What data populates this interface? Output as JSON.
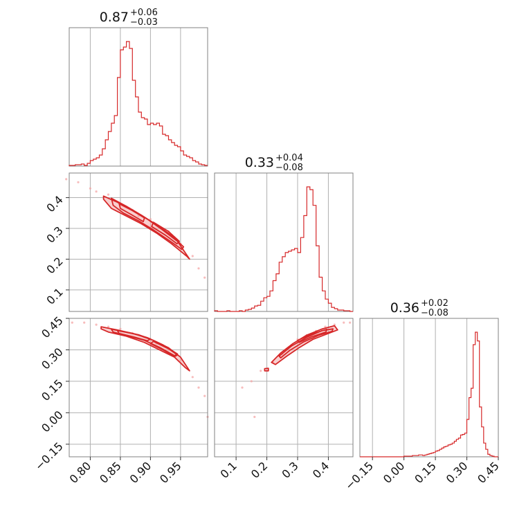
{
  "colors": {
    "main": "#d62728",
    "light": "#f4a6a6",
    "grid": "#b0b0b0",
    "frame": "#808080"
  },
  "chart_data": {
    "type": "corner",
    "grid": true,
    "params": [
      {
        "title": {
          "median": "0.87",
          "upper": "+0.06",
          "lower": "−0.03"
        },
        "range": [
          0.765,
          0.995
        ],
        "ticks": [
          0.8,
          0.85,
          0.9,
          0.95
        ],
        "tick_labels": [
          "0.80",
          "0.85",
          "0.90",
          "0.95"
        ],
        "hist_x": [
          0.765,
          0.77,
          0.775,
          0.78,
          0.785,
          0.79,
          0.795,
          0.8,
          0.805,
          0.81,
          0.815,
          0.82,
          0.825,
          0.83,
          0.835,
          0.84,
          0.845,
          0.85,
          0.855,
          0.86,
          0.865,
          0.87,
          0.875,
          0.88,
          0.885,
          0.89,
          0.895,
          0.9,
          0.905,
          0.91,
          0.915,
          0.92,
          0.925,
          0.93,
          0.935,
          0.94,
          0.945,
          0.95,
          0.955,
          0.96,
          0.965,
          0.97,
          0.975,
          0.98,
          0.985,
          0.99,
          0.995
        ],
        "hist_y": [
          1,
          1,
          2,
          2,
          3,
          1,
          4,
          8,
          10,
          12,
          16,
          25,
          38,
          50,
          62,
          73,
          128,
          168,
          172,
          180,
          170,
          124,
          100,
          78,
          70,
          68,
          60,
          62,
          60,
          62,
          58,
          46,
          44,
          38,
          34,
          30,
          28,
          22,
          16,
          14,
          12,
          8,
          6,
          3,
          2,
          1
        ]
      },
      {
        "title": {
          "median": "0.33",
          "upper": "+0.04",
          "lower": "−0.08"
        },
        "range": [
          0.03,
          0.48
        ],
        "ticks": [
          0.1,
          0.2,
          0.3,
          0.4
        ],
        "tick_labels": [
          "0.1",
          "0.2",
          "0.3",
          "0.4"
        ],
        "hist_x": [
          0.03,
          0.04,
          0.05,
          0.06,
          0.07,
          0.08,
          0.09,
          0.1,
          0.11,
          0.12,
          0.13,
          0.14,
          0.15,
          0.16,
          0.17,
          0.18,
          0.19,
          0.2,
          0.21,
          0.22,
          0.23,
          0.24,
          0.25,
          0.26,
          0.27,
          0.28,
          0.29,
          0.3,
          0.31,
          0.32,
          0.33,
          0.34,
          0.35,
          0.36,
          0.37,
          0.38,
          0.39,
          0.4,
          0.41,
          0.42,
          0.43,
          0.44,
          0.45,
          0.46,
          0.47,
          0.48
        ],
        "hist_y": [
          1,
          0,
          0,
          0,
          1,
          0,
          0,
          0,
          1,
          0,
          2,
          3,
          5,
          8,
          9,
          15,
          20,
          22,
          30,
          45,
          55,
          72,
          80,
          86,
          88,
          90,
          92,
          86,
          108,
          140,
          182,
          178,
          155,
          96,
          50,
          30,
          18,
          12,
          6,
          4,
          2,
          2,
          1,
          1,
          0
        ]
      },
      {
        "title": {
          "median": "0.36",
          "upper": "+0.02",
          "lower": "−0.08"
        },
        "range": [
          -0.21,
          0.45
        ],
        "ticks": [
          -0.15,
          0.0,
          0.15,
          0.3,
          0.45
        ],
        "tick_labels": [
          "−0.15",
          "0.00",
          "0.15",
          "0.30",
          "0.45"
        ],
        "hist_x": [
          -0.21,
          -0.2,
          -0.19,
          -0.18,
          -0.17,
          -0.16,
          -0.15,
          -0.14,
          -0.13,
          -0.12,
          -0.11,
          -0.1,
          -0.09,
          -0.08,
          -0.07,
          -0.06,
          -0.05,
          -0.04,
          -0.03,
          -0.02,
          -0.01,
          0.0,
          0.01,
          0.02,
          0.03,
          0.04,
          0.05,
          0.06,
          0.07,
          0.08,
          0.09,
          0.1,
          0.11,
          0.12,
          0.13,
          0.14,
          0.15,
          0.16,
          0.17,
          0.18,
          0.19,
          0.2,
          0.21,
          0.22,
          0.23,
          0.24,
          0.25,
          0.26,
          0.27,
          0.28,
          0.29,
          0.3,
          0.31,
          0.32,
          0.33,
          0.34,
          0.35,
          0.36,
          0.37,
          0.38,
          0.39,
          0.4,
          0.41,
          0.42,
          0.43,
          0.44,
          0.45
        ],
        "hist_y": [
          0,
          0,
          0,
          0,
          0,
          0,
          0,
          0,
          0,
          0,
          0,
          0,
          0,
          0,
          0,
          0,
          0,
          0,
          0,
          0,
          0,
          1,
          1,
          1,
          1,
          2,
          2,
          2,
          3,
          3,
          2,
          3,
          4,
          5,
          6,
          7,
          9,
          10,
          12,
          14,
          16,
          17,
          19,
          20,
          22,
          25,
          28,
          30,
          35,
          36,
          38,
          60,
          95,
          110,
          180,
          200,
          186,
          80,
          48,
          22,
          12,
          4,
          2,
          1,
          0,
          0
        ]
      }
    ],
    "pairs": [
      {
        "row": 1,
        "col": 0,
        "scatter": [
          [
            0.76,
            0.46
          ],
          [
            0.78,
            0.45
          ],
          [
            0.8,
            0.43
          ],
          [
            0.81,
            0.42
          ],
          [
            0.83,
            0.41
          ],
          [
            0.84,
            0.39
          ],
          [
            0.86,
            0.37
          ],
          [
            0.87,
            0.36
          ],
          [
            0.88,
            0.34
          ],
          [
            0.9,
            0.33
          ],
          [
            0.91,
            0.31
          ],
          [
            0.93,
            0.29
          ],
          [
            0.94,
            0.27
          ],
          [
            0.95,
            0.25
          ],
          [
            0.97,
            0.21
          ],
          [
            0.98,
            0.17
          ],
          [
            0.99,
            0.14
          ]
        ],
        "contours": [
          [
            [
              0.822,
              0.405
            ],
            [
              0.845,
              0.385
            ],
            [
              0.87,
              0.358
            ],
            [
              0.895,
              0.33
            ],
            [
              0.92,
              0.295
            ],
            [
              0.945,
              0.258
            ],
            [
              0.965,
              0.2
            ],
            [
              0.96,
              0.21
            ],
            [
              0.935,
              0.25
            ],
            [
              0.91,
              0.285
            ],
            [
              0.885,
              0.315
            ],
            [
              0.86,
              0.34
            ],
            [
              0.835,
              0.365
            ],
            [
              0.822,
              0.395
            ]
          ],
          [
            [
              0.835,
              0.398
            ],
            [
              0.86,
              0.372
            ],
            [
              0.885,
              0.343
            ],
            [
              0.91,
              0.312
            ],
            [
              0.935,
              0.277
            ],
            [
              0.955,
              0.24
            ],
            [
              0.952,
              0.232
            ],
            [
              0.93,
              0.262
            ],
            [
              0.905,
              0.295
            ],
            [
              0.88,
              0.325
            ],
            [
              0.855,
              0.35
            ],
            [
              0.838,
              0.375
            ]
          ],
          [
            [
              0.848,
              0.38
            ],
            [
              0.87,
              0.358
            ],
            [
              0.89,
              0.334
            ],
            [
              0.888,
              0.322
            ],
            [
              0.868,
              0.345
            ],
            [
              0.85,
              0.365
            ]
          ],
          [
            [
              0.905,
              0.32
            ],
            [
              0.93,
              0.29
            ],
            [
              0.948,
              0.258
            ],
            [
              0.944,
              0.25
            ],
            [
              0.925,
              0.278
            ],
            [
              0.902,
              0.306
            ]
          ]
        ]
      },
      {
        "row": 2,
        "col": 0,
        "scatter": [
          [
            0.77,
            0.43
          ],
          [
            0.79,
            0.43
          ],
          [
            0.81,
            0.42
          ],
          [
            0.83,
            0.41
          ],
          [
            0.85,
            0.4
          ],
          [
            0.87,
            0.38
          ],
          [
            0.89,
            0.36
          ],
          [
            0.91,
            0.33
          ],
          [
            0.93,
            0.3
          ],
          [
            0.95,
            0.25
          ],
          [
            0.97,
            0.17
          ],
          [
            0.98,
            0.12
          ],
          [
            0.99,
            0.08
          ],
          [
            0.995,
            -0.02
          ]
        ],
        "contours": [
          [
            [
              0.818,
              0.41
            ],
            [
              0.845,
              0.395
            ],
            [
              0.875,
              0.375
            ],
            [
              0.905,
              0.345
            ],
            [
              0.93,
              0.31
            ],
            [
              0.95,
              0.265
            ],
            [
              0.965,
              0.2
            ],
            [
              0.958,
              0.215
            ],
            [
              0.94,
              0.265
            ],
            [
              0.915,
              0.3
            ],
            [
              0.89,
              0.335
            ],
            [
              0.86,
              0.365
            ],
            [
              0.83,
              0.385
            ],
            [
              0.818,
              0.4
            ]
          ],
          [
            [
              0.835,
              0.398
            ],
            [
              0.865,
              0.382
            ],
            [
              0.895,
              0.358
            ],
            [
              0.92,
              0.325
            ],
            [
              0.945,
              0.28
            ],
            [
              0.94,
              0.272
            ],
            [
              0.915,
              0.312
            ],
            [
              0.89,
              0.345
            ],
            [
              0.86,
              0.368
            ],
            [
              0.838,
              0.385
            ]
          ],
          [
            [
              0.845,
              0.392
            ],
            [
              0.88,
              0.372
            ],
            [
              0.9,
              0.352
            ],
            [
              0.895,
              0.343
            ],
            [
              0.872,
              0.362
            ],
            [
              0.848,
              0.378
            ]
          ],
          [
            [
              0.905,
              0.34
            ],
            [
              0.93,
              0.305
            ],
            [
              0.945,
              0.275
            ],
            [
              0.94,
              0.268
            ],
            [
              0.922,
              0.298
            ],
            [
              0.9,
              0.33
            ]
          ]
        ]
      },
      {
        "row": 2,
        "col": 1,
        "scatter": [
          [
            0.12,
            0.12
          ],
          [
            0.15,
            0.15
          ],
          [
            0.16,
            -0.02
          ],
          [
            0.18,
            0.2
          ],
          [
            0.2,
            0.21
          ],
          [
            0.22,
            0.24
          ],
          [
            0.25,
            0.28
          ],
          [
            0.28,
            0.32
          ],
          [
            0.3,
            0.35
          ],
          [
            0.33,
            0.37
          ],
          [
            0.36,
            0.39
          ],
          [
            0.39,
            0.41
          ],
          [
            0.42,
            0.42
          ],
          [
            0.45,
            0.43
          ],
          [
            0.47,
            0.43
          ]
        ],
        "contours": [
          [
            [
              0.215,
              0.24
            ],
            [
              0.245,
              0.285
            ],
            [
              0.285,
              0.33
            ],
            [
              0.33,
              0.37
            ],
            [
              0.38,
              0.4
            ],
            [
              0.42,
              0.415
            ],
            [
              0.43,
              0.395
            ],
            [
              0.4,
              0.378
            ],
            [
              0.35,
              0.35
            ],
            [
              0.305,
              0.31
            ],
            [
              0.265,
              0.27
            ],
            [
              0.228,
              0.23
            ]
          ],
          [
            [
              0.24,
              0.27
            ],
            [
              0.28,
              0.318
            ],
            [
              0.33,
              0.36
            ],
            [
              0.38,
              0.392
            ],
            [
              0.415,
              0.4
            ],
            [
              0.412,
              0.388
            ],
            [
              0.37,
              0.37
            ],
            [
              0.32,
              0.338
            ],
            [
              0.275,
              0.298
            ],
            [
              0.245,
              0.262
            ]
          ],
          [
            [
              0.3,
              0.345
            ],
            [
              0.345,
              0.375
            ],
            [
              0.395,
              0.398
            ],
            [
              0.392,
              0.385
            ],
            [
              0.345,
              0.362
            ],
            [
              0.305,
              0.335
            ]
          ],
          [
            [
              0.193,
              0.21
            ],
            [
              0.205,
              0.212
            ],
            [
              0.205,
              0.2
            ],
            [
              0.193,
              0.2
            ]
          ]
        ]
      }
    ]
  }
}
